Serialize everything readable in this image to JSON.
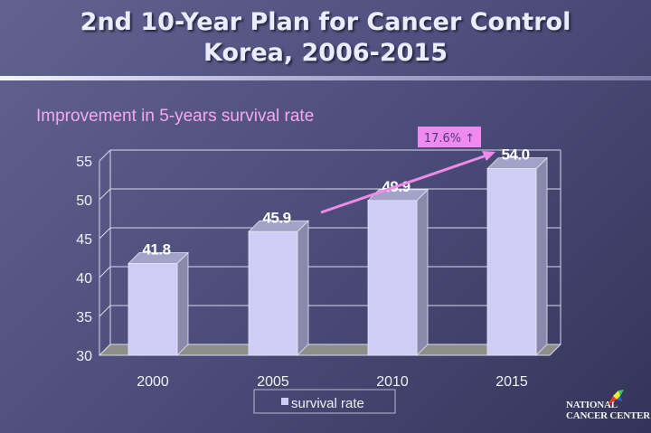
{
  "slide": {
    "title_line1": "2nd 10-Year Plan for Cancer Control",
    "title_line2": "Korea, 2006-2015",
    "subtitle": "Improvement in 5-years survival rate",
    "logo_line1": "NATIONAL",
    "logo_line2": "CANCER CENTER"
  },
  "chart_data": {
    "type": "bar",
    "title": "Improvement in 5-years survival rate",
    "categories": [
      "2000",
      "2005",
      "2010",
      "2015"
    ],
    "series": [
      {
        "name": "survival rate",
        "values": [
          41.8,
          45.9,
          49.9,
          54.0
        ]
      }
    ],
    "data_labels": [
      "41.8",
      "45.9",
      "49.9",
      "54.0"
    ],
    "yticks": [
      "30",
      "35",
      "40",
      "45",
      "50",
      "55"
    ],
    "ylim": [
      30,
      55
    ],
    "xlabel": "",
    "ylabel": "",
    "grid": true,
    "legend": "bottom-center",
    "annotation": {
      "text": "17.6% ↑",
      "arrow_from": "2005",
      "arrow_to": "2015"
    },
    "colors": {
      "bar_front": "#cfcdf6",
      "bar_side": "#8a89ab",
      "bar_top": "#a3a2c8",
      "floor": "#8e8e88",
      "arrow": "#ee8ae8",
      "annotation_bg": "#f08af0",
      "grid": "#d8d8ee"
    }
  }
}
